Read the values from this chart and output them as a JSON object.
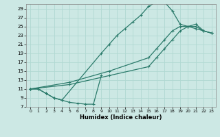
{
  "xlabel": "Humidex (Indice chaleur)",
  "bg_color": "#cce8e4",
  "line_color": "#2a7a6a",
  "grid_color": "#b0d8d2",
  "xlim": [
    -0.5,
    23.5
  ],
  "ylim": [
    7,
    30
  ],
  "yticks": [
    7,
    9,
    11,
    13,
    15,
    17,
    19,
    21,
    23,
    25,
    27,
    29
  ],
  "xticks": [
    0,
    1,
    2,
    3,
    4,
    5,
    6,
    7,
    8,
    9,
    10,
    11,
    12,
    13,
    14,
    15,
    16,
    17,
    18,
    19,
    20,
    21,
    22,
    23
  ],
  "curve_v_x": [
    0,
    1,
    2,
    3,
    4,
    5,
    6,
    7,
    8,
    9
  ],
  "curve_v_y": [
    11,
    11,
    10,
    9,
    8.5,
    8,
    7.8,
    7.6,
    7.6,
    14
  ],
  "curve_top_x": [
    0,
    1,
    2,
    3,
    4,
    9,
    10,
    11,
    12,
    13,
    14,
    15,
    16,
    17,
    18,
    19,
    20,
    21,
    22,
    23
  ],
  "curve_top_y": [
    11,
    11,
    10,
    9,
    8.5,
    19,
    21,
    23,
    24.5,
    26,
    27.5,
    29.5,
    30.5,
    30.5,
    28.5,
    25.5,
    25,
    25,
    24,
    23.5
  ],
  "curve_diag1_x": [
    0,
    5,
    10,
    15,
    16,
    17,
    18,
    19,
    20,
    21,
    22,
    23
  ],
  "curve_diag1_y": [
    11,
    12,
    14,
    16,
    18,
    20,
    22,
    24,
    25,
    25.5,
    24,
    23.5
  ],
  "curve_diag2_x": [
    0,
    5,
    10,
    15,
    16,
    17,
    18,
    19,
    20,
    21,
    22,
    23
  ],
  "curve_diag2_y": [
    11,
    12.5,
    15,
    18,
    20,
    22,
    24,
    25,
    25,
    24.5,
    24,
    23.5
  ]
}
